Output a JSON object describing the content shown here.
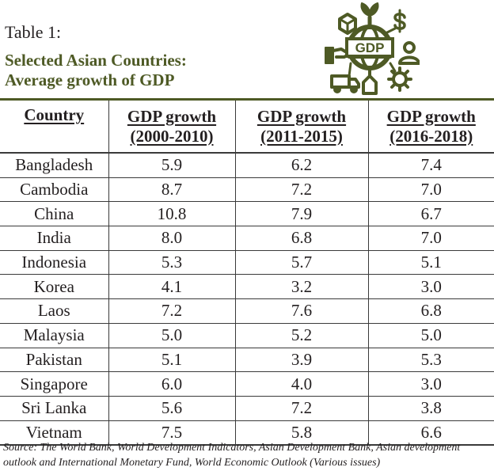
{
  "caption": "Table 1:",
  "title_line1": "Selected Asian Countries:",
  "title_line2": "Average growth of GDP",
  "icon": {
    "name": "gdp-globe-icon",
    "label": "GDP",
    "color": "#4e5a25"
  },
  "table": {
    "headers": [
      {
        "line1": "Country",
        "line2": ""
      },
      {
        "line1": "GDP growth",
        "line2": "(2000-2010)"
      },
      {
        "line1": "GDP growth",
        "line2": "(2011-2015)"
      },
      {
        "line1": "GDP growth",
        "line2": "(2016-2018)"
      }
    ],
    "rows": [
      [
        "Bangladesh",
        "5.9",
        "6.2",
        "7.4"
      ],
      [
        "Cambodia",
        "8.7",
        "7.2",
        "7.0"
      ],
      [
        "China",
        "10.8",
        "7.9",
        "6.7"
      ],
      [
        "India",
        "8.0",
        "6.8",
        "7.0"
      ],
      [
        "Indonesia",
        "5.3",
        "5.7",
        "5.1"
      ],
      [
        "Korea",
        "4.1",
        "3.2",
        "3.0"
      ],
      [
        "Laos",
        "7.2",
        "7.6",
        "6.8"
      ],
      [
        "Malaysia",
        "5.0",
        "5.2",
        "5.0"
      ],
      [
        "Pakistan",
        "5.1",
        "3.9",
        "5.3"
      ],
      [
        "Singapore",
        "6.0",
        "4.0",
        "3.0"
      ],
      [
        "Sri Lanka",
        "5.6",
        "7.2",
        "3.8"
      ],
      [
        "Vietnam",
        "7.5",
        "5.8",
        "6.6"
      ]
    ]
  },
  "source_line1": "Source: The World Bank, World Development Indicators, Asian Development Bank, Asian development",
  "source_line2": "outlook and International Monetary Fund, World Economic Outlook (Various issues)"
}
